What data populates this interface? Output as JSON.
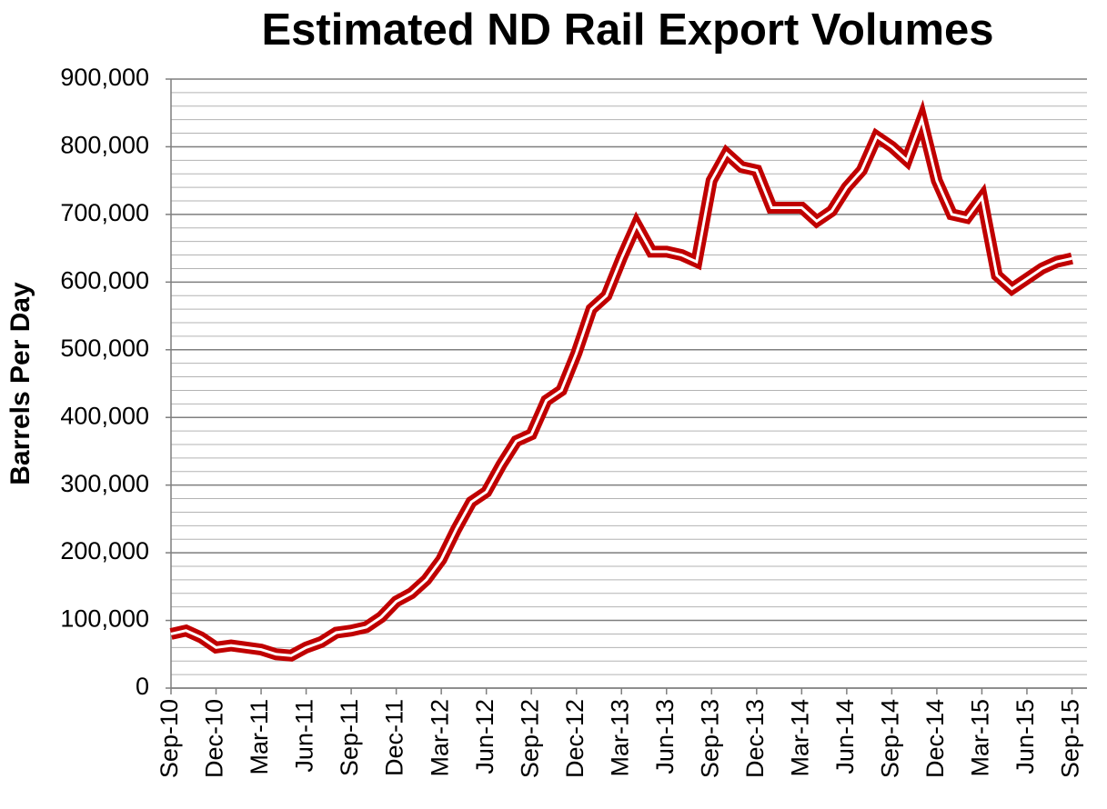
{
  "chart_data": {
    "type": "line",
    "title": "Estimated ND Rail Export Volumes",
    "y_label": "Barrels Per Day",
    "categories": [
      "Sep-10",
      null,
      null,
      "Dec-10",
      null,
      null,
      "Mar-11",
      null,
      null,
      "Jun-11",
      null,
      null,
      "Sep-11",
      null,
      null,
      "Dec-11",
      null,
      null,
      "Mar-12",
      null,
      null,
      "Jun-12",
      null,
      null,
      "Sep-12",
      null,
      null,
      "Dec-12",
      null,
      null,
      "Mar-13",
      null,
      null,
      "Jun-13",
      null,
      null,
      "Sep-13",
      null,
      null,
      "Dec-13",
      null,
      null,
      "Mar-14",
      null,
      null,
      "Jun-14",
      null,
      null,
      "Sep-14",
      null,
      null,
      "Dec-14",
      null,
      null,
      "Mar-15",
      null,
      null,
      "Jun-15",
      null,
      null,
      "Sep-15"
    ],
    "series": [
      {
        "name": "Barrels Per Day",
        "color": "#c00000",
        "values": [
          80000,
          85000,
          75000,
          60000,
          63000,
          60000,
          57000,
          50000,
          48000,
          60000,
          68000,
          82000,
          85000,
          90000,
          105000,
          128000,
          140000,
          160000,
          190000,
          235000,
          275000,
          290000,
          330000,
          365000,
          375000,
          425000,
          440000,
          495000,
          560000,
          580000,
          635000,
          685000,
          645000,
          645000,
          640000,
          630000,
          750000,
          790000,
          770000,
          765000,
          710000,
          710000,
          710000,
          690000,
          705000,
          740000,
          765000,
          815000,
          800000,
          780000,
          840000,
          750000,
          700000,
          695000,
          725000,
          610000,
          590000,
          605000,
          620000,
          630000,
          635000
        ]
      }
    ],
    "ylim": [
      0,
      900000
    ],
    "yticks": [
      0,
      {
        "value": 100000,
        "label": "100,000"
      },
      {
        "value": 200000,
        "label": "200,000"
      },
      {
        "value": 300000,
        "label": "300,000"
      },
      {
        "value": 400000,
        "label": "400,000"
      },
      {
        "value": 500000,
        "label": "500,000"
      },
      {
        "value": 600000,
        "label": "600,000"
      },
      {
        "value": 700000,
        "label": "700,000"
      },
      {
        "value": 800000,
        "label": "800,000"
      },
      {
        "value": 900000,
        "label": "900,000"
      }
    ],
    "grid": true,
    "minor_grid": 20000
  }
}
